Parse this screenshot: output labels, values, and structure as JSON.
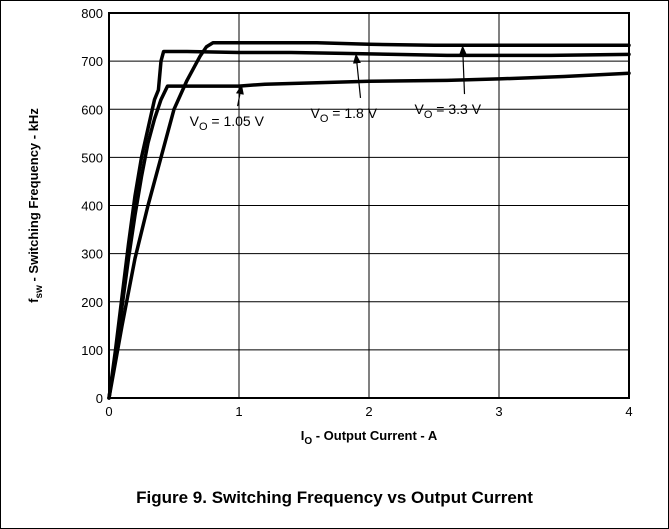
{
  "caption": "Figure 9. Switching Frequency vs Output Current",
  "chart_data": {
    "type": "line",
    "title": "",
    "xlabel": {
      "main": "I",
      "sub": "O",
      "rest": " - Output Current - A"
    },
    "ylabel": {
      "main": "f",
      "sub": "sw",
      "rest": " - Switching Frequency - kHz"
    },
    "xlim": [
      0,
      4
    ],
    "ylim": [
      0,
      800
    ],
    "xticks": [
      0,
      1,
      2,
      3,
      4
    ],
    "yticks": [
      0,
      100,
      200,
      300,
      400,
      500,
      600,
      700,
      800
    ],
    "grid": true,
    "series": [
      {
        "name": "VO = 1.05 V",
        "label": {
          "main": "V",
          "sub": "O",
          "rest": " = 1.05 V"
        },
        "x": [
          0,
          0.05,
          0.1,
          0.15,
          0.2,
          0.25,
          0.3,
          0.35,
          0.4,
          0.45,
          1.0,
          1.2,
          1.6,
          2.0,
          2.6,
          3.0,
          3.5,
          4.0
        ],
        "y": [
          0,
          90,
          190,
          290,
          380,
          460,
          530,
          580,
          620,
          648,
          648,
          652,
          655,
          658,
          660,
          663,
          668,
          675
        ]
      },
      {
        "name": "VO = 1.8 V",
        "label": {
          "main": "V",
          "sub": "O",
          "rest": " = 1.8 V"
        },
        "x": [
          0,
          0.05,
          0.1,
          0.15,
          0.2,
          0.25,
          0.3,
          0.35,
          0.38,
          0.4,
          0.42,
          0.6,
          1.0,
          1.4,
          1.8,
          2.2,
          2.6,
          3.0,
          3.4,
          4.0
        ],
        "y": [
          0,
          100,
          210,
          320,
          420,
          500,
          560,
          620,
          640,
          700,
          720,
          720,
          718,
          718,
          716,
          714,
          712,
          712,
          712,
          714
        ]
      },
      {
        "name": "VO = 3.3 V",
        "label": {
          "main": "V",
          "sub": "O",
          "rest": " = 3.3 V"
        },
        "x": [
          0,
          0.1,
          0.2,
          0.3,
          0.4,
          0.5,
          0.6,
          0.7,
          0.75,
          0.8,
          1.0,
          1.6,
          2.0,
          2.5,
          3.0,
          3.5,
          4.0
        ],
        "y": [
          0,
          150,
          290,
          400,
          500,
          600,
          660,
          710,
          730,
          738,
          738,
          738,
          735,
          733,
          733,
          733,
          733
        ]
      }
    ],
    "annotations": [
      {
        "series": 0,
        "text_x": 0.62,
        "text_y": 565,
        "arrow_to_x": 1.02,
        "arrow_to_y": 650
      },
      {
        "series": 1,
        "text_x": 1.55,
        "text_y": 582,
        "arrow_to_x": 1.9,
        "arrow_to_y": 714
      },
      {
        "series": 2,
        "text_x": 2.35,
        "text_y": 590,
        "arrow_to_x": 2.72,
        "arrow_to_y": 731
      }
    ]
  }
}
